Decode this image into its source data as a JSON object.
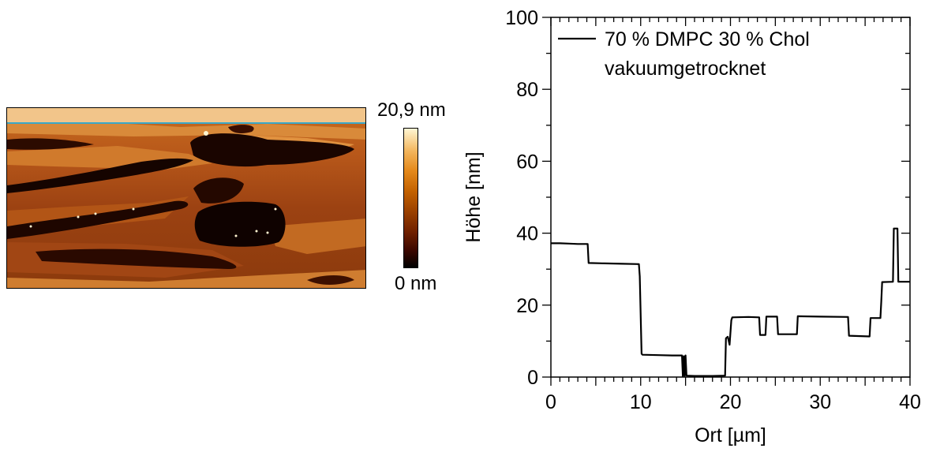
{
  "afm_image": {
    "colorbar_max_label": "20,9 nm",
    "colorbar_min_label": "0 nm",
    "colors": {
      "dark": "#100300",
      "mid": "#8b3a0c",
      "light": "#e49a45",
      "highlight": "#fff4d0",
      "scan_line": "#3aa8c8"
    }
  },
  "chart_data": {
    "type": "line",
    "title": "",
    "xlabel": "Ort [µm]",
    "ylabel": "Höhe [nm]",
    "xlim": [
      0,
      40
    ],
    "ylim": [
      0,
      100
    ],
    "x_ticks": [
      0,
      10,
      20,
      30,
      40
    ],
    "y_ticks": [
      0,
      20,
      40,
      60,
      80,
      100
    ],
    "grid": false,
    "legend_position": "top-left",
    "series": [
      {
        "name": "70 % DMPC 30 % Chol vakuumgetrocknet",
        "legend_line1": "70 % DMPC 30 % Chol",
        "legend_line2": "vakuumgetrocknet",
        "color": "#000000",
        "points": [
          [
            0,
            37.2
          ],
          [
            1,
            37.2
          ],
          [
            2,
            37.1
          ],
          [
            3,
            37.0
          ],
          [
            4.1,
            37.0
          ],
          [
            4.2,
            31.7
          ],
          [
            6,
            31.6
          ],
          [
            8,
            31.5
          ],
          [
            9.8,
            31.4
          ],
          [
            9.9,
            28
          ],
          [
            10.1,
            6.5
          ],
          [
            10.2,
            6.2
          ],
          [
            12,
            6.1
          ],
          [
            13.5,
            6.0
          ],
          [
            14.6,
            6.0
          ],
          [
            14.7,
            0.2
          ],
          [
            14.8,
            5.8
          ],
          [
            14.9,
            0.3
          ],
          [
            15.0,
            6.0
          ],
          [
            15.1,
            0.4
          ],
          [
            16,
            0.3
          ],
          [
            17,
            0.3
          ],
          [
            18,
            0.3
          ],
          [
            19.4,
            0.4
          ],
          [
            19.5,
            10.8
          ],
          [
            19.7,
            11.2
          ],
          [
            19.9,
            9.0
          ],
          [
            20.1,
            15.8
          ],
          [
            20.2,
            16.6
          ],
          [
            22,
            16.7
          ],
          [
            23.2,
            16.6
          ],
          [
            23.3,
            11.7
          ],
          [
            23.9,
            11.7
          ],
          [
            24.0,
            16.8
          ],
          [
            25.2,
            16.8
          ],
          [
            25.3,
            11.9
          ],
          [
            27.4,
            11.9
          ],
          [
            27.5,
            16.9
          ],
          [
            30,
            16.8
          ],
          [
            33.1,
            16.7
          ],
          [
            33.2,
            11.5
          ],
          [
            35.5,
            11.3
          ],
          [
            35.6,
            16.4
          ],
          [
            36.7,
            16.4
          ],
          [
            36.8,
            21.0
          ],
          [
            36.9,
            26.4
          ],
          [
            38.1,
            26.5
          ],
          [
            38.2,
            41.3
          ],
          [
            38.6,
            41.3
          ],
          [
            38.7,
            26.5
          ],
          [
            40,
            26.5
          ]
        ]
      }
    ]
  }
}
